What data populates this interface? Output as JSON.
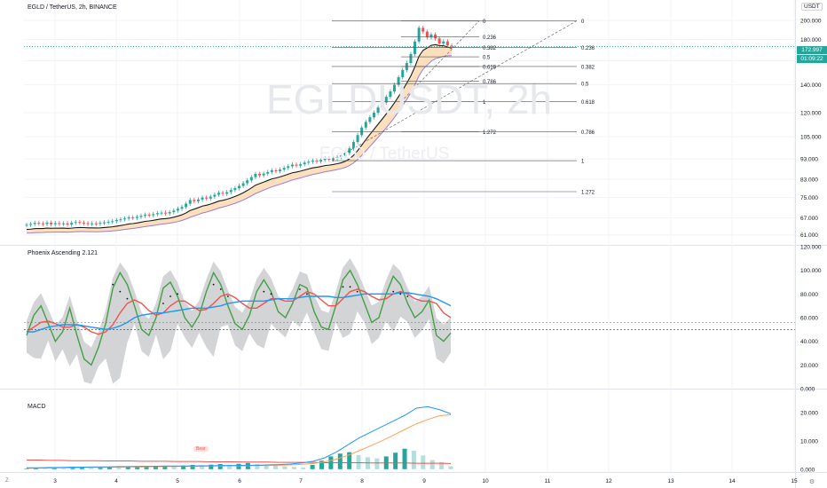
{
  "header": {
    "symbol_title": "EGLD / TetherUS, 2h, BINANCE",
    "currency_label": "USDT",
    "watermark": "EGLDUSDT, 2h",
    "watermark_sub": "EGLD / TetherUS"
  },
  "price_badges": {
    "last_price": "172.997",
    "countdown": "01:09:22"
  },
  "colors": {
    "up": "#26a69a",
    "down": "#ef5350",
    "blue": "#2196f3",
    "red": "#ef5350",
    "green": "#43a047",
    "orange": "#f7a35c",
    "band_fill": "#fcd9b0",
    "purple": "#9c7bd6",
    "grey": "#c8c9cc"
  },
  "panes": {
    "price": {
      "axis_ticks": [
        "200.000",
        "180.000",
        "160.000",
        "140.000",
        "120.000",
        "105.000",
        "93.000",
        "83.000",
        "75.000",
        "67.000",
        "61.000"
      ],
      "fib_left": [
        {
          "label": "0",
          "value": 199.5
        },
        {
          "label": "0.236",
          "value": 182.5
        },
        {
          "label": "0.382",
          "value": 172.0
        },
        {
          "label": "0.5",
          "value": 163.5
        },
        {
          "label": "0.618",
          "value": 155.0
        },
        {
          "label": "0.786",
          "value": 143.0
        },
        {
          "label": "1",
          "value": 127.5
        },
        {
          "label": "1.272",
          "value": 108.0
        }
      ],
      "fib_right": [
        {
          "label": "0",
          "value": 199.5
        },
        {
          "label": "0.236",
          "value": 172.0
        },
        {
          "label": "0.382",
          "value": 155.0
        },
        {
          "label": "0.5",
          "value": 141.0
        },
        {
          "label": "0.618",
          "value": 127.5
        },
        {
          "label": "0.786",
          "value": 108.0
        },
        {
          "label": "1",
          "value": 92.0
        },
        {
          "label": "1.272",
          "value": 77.5
        }
      ]
    },
    "oscillator": {
      "title": "Phoenix Ascending 2.121",
      "axis_ticks": [
        "120.000",
        "100.000",
        "80.000",
        "60.000",
        "40.000",
        "20.000",
        "0.000"
      ]
    },
    "macd": {
      "title": "MACD",
      "axis_ticks": [
        "20.000",
        "10.000",
        "0.000"
      ],
      "signal_label": "Bear"
    }
  },
  "time_axis": [
    "3",
    "4",
    "5",
    "6",
    "7",
    "8",
    "9",
    "10",
    "11",
    "12",
    "13",
    "14",
    "15"
  ],
  "icons": [
    "go-to-date-icon",
    "scale-settings-icon"
  ],
  "chart_data": [
    {
      "type": "line",
      "title": "EGLD / TetherUS, 2h, BINANCE",
      "log_scale": true,
      "ylim": [
        58,
        205
      ],
      "x_label_ticks": [
        "3",
        "4",
        "5",
        "6",
        "7",
        "8",
        "9",
        "10",
        "11",
        "12",
        "13",
        "14",
        "15"
      ],
      "grid": true,
      "series": [
        {
          "values": [
            64.5,
            64.8,
            65.2,
            65.0,
            64.8,
            65.3,
            64.7,
            65.1,
            64.9,
            65.0,
            64.6,
            65.2,
            65.5,
            65.3,
            65.1,
            64.8,
            65.0,
            64.9,
            65.2,
            65.4,
            65.6,
            65.8,
            66.2,
            66.5,
            66.8,
            67.2,
            67.0,
            67.4,
            67.8,
            68.2,
            68.0,
            68.4,
            68.8,
            69.0,
            68.7,
            69.2,
            69.8,
            70.5,
            71.2,
            72.5,
            74.0,
            73.5,
            74.2,
            75.0,
            74.6,
            75.4,
            76.2,
            77.0,
            76.6,
            77.3,
            78.2,
            79.0,
            80.0,
            81.2,
            82.5,
            84.0,
            85.5,
            84.8,
            85.6,
            86.4,
            87.2,
            86.8,
            87.6,
            88.4,
            89.2,
            90.0,
            89.5,
            90.2,
            91.0,
            91.5,
            92.0,
            91.6,
            92.4,
            93.0,
            92.6,
            93.2,
            93.8,
            94.5,
            96.0,
            98.5,
            102.0,
            106.0,
            110.5,
            114.0,
            117.0,
            120.0,
            123.5,
            127.0,
            131.0,
            135.0,
            140.0,
            146.0,
            152.0,
            158.0,
            166.0,
            178.0,
            192.0,
            188.0,
            182.0,
            185.0,
            181.0,
            176.0,
            178.0,
            174.0,
            173.0
          ]
        }
      ]
    },
    {
      "type": "line",
      "title": "Phoenix Ascending 2.121",
      "ylim": [
        0,
        120
      ],
      "x_label_ticks": [
        "3",
        "4",
        "5",
        "6",
        "7",
        "8",
        "9",
        "10",
        "11",
        "12",
        "13",
        "14",
        "15"
      ],
      "series": [
        {
          "values": [
            45,
            62,
            70,
            55,
            40,
            48,
            68,
            45,
            25,
            20,
            35,
            55,
            85,
            98,
            88,
            70,
            50,
            45,
            60,
            85,
            90,
            78,
            60,
            52,
            62,
            82,
            98,
            88,
            70,
            55,
            50,
            62,
            82,
            92,
            82,
            65,
            60,
            72,
            88,
            85,
            65,
            52,
            50,
            70,
            92,
            100,
            88,
            72,
            56,
            60,
            80,
            95,
            88,
            72,
            60,
            65,
            75,
            45,
            40,
            47
          ]
        },
        {
          "values": [
            48,
            52,
            56,
            57,
            55,
            52,
            52,
            54,
            52,
            48,
            46,
            48,
            54,
            64,
            72,
            75,
            72,
            66,
            62,
            64,
            70,
            74,
            74,
            70,
            66,
            67,
            72,
            78,
            80,
            77,
            72,
            68,
            68,
            72,
            76,
            76,
            74,
            74,
            78,
            82,
            80,
            75,
            70,
            70,
            76,
            82,
            84,
            82,
            78,
            75,
            76,
            80,
            82,
            80,
            76,
            74,
            74,
            72,
            64,
            60
          ]
        },
        {
          "values": [
            48,
            48,
            50,
            52,
            53,
            54,
            54,
            54,
            53,
            52,
            51,
            50,
            51,
            53,
            56,
            60,
            62,
            63,
            64,
            64,
            65,
            66,
            67,
            68,
            68,
            68,
            69,
            70,
            72,
            73,
            74,
            74,
            74,
            74,
            75,
            76,
            76,
            76,
            77,
            78,
            78,
            78,
            78,
            77,
            77,
            78,
            79,
            80,
            80,
            80,
            80,
            80,
            81,
            81,
            80,
            79,
            78,
            76,
            73,
            70
          ]
        },
        {
          "values": [
            null,
            null,
            null,
            null,
            null,
            null,
            null,
            null,
            null,
            null,
            null,
            null,
            88,
            82,
            76,
            null,
            null,
            null,
            null,
            72,
            78,
            80,
            null,
            null,
            null,
            null,
            88,
            84,
            78,
            null,
            null,
            null,
            null,
            82,
            80,
            null,
            null,
            null,
            84,
            80,
            null,
            null,
            null,
            null,
            86,
            86,
            82,
            null,
            null,
            null,
            null,
            82,
            80,
            78,
            null,
            null,
            null,
            null,
            null,
            null
          ]
        }
      ]
    },
    {
      "type": "line",
      "title": "MACD",
      "ylim": [
        -1,
        24
      ],
      "x_label_ticks": [
        "3",
        "4",
        "5",
        "6",
        "7",
        "8",
        "9",
        "10",
        "11",
        "12",
        "13",
        "14",
        "15"
      ],
      "series": [
        {
          "values": [
            0.5,
            0.5,
            0.6,
            0.6,
            0.7,
            0.7,
            0.8,
            0.8,
            0.9,
            0.9,
            1.0,
            1.0,
            1.1,
            1.1,
            1.1,
            1.2,
            1.2,
            1.3,
            1.3,
            1.4,
            1.4,
            1.5,
            1.6,
            1.8,
            2.2,
            2.8,
            4.0,
            6.0,
            8.5,
            11.0,
            13.0,
            15.0,
            17.0,
            19.0,
            21.5,
            22.0,
            21.0,
            19.5
          ]
        },
        {
          "values": [
            0.3,
            0.4,
            0.4,
            0.5,
            0.5,
            0.6,
            0.6,
            0.7,
            0.7,
            0.8,
            0.8,
            0.9,
            0.9,
            1.0,
            1.0,
            1.0,
            1.1,
            1.1,
            1.2,
            1.2,
            1.3,
            1.3,
            1.4,
            1.5,
            1.7,
            2.0,
            2.6,
            3.5,
            4.8,
            6.5,
            8.2,
            10.0,
            12.0,
            14.0,
            16.0,
            17.5,
            18.8,
            19.2
          ]
        },
        {
          "values": [
            3.2,
            3.2,
            3.1,
            3.1,
            3.0,
            3.0,
            3.0,
            2.9,
            2.9,
            2.9,
            2.8,
            2.8,
            2.8,
            2.7,
            2.7,
            2.7,
            2.6,
            2.6,
            2.6,
            2.5,
            2.5,
            2.5,
            2.4,
            2.4,
            2.4,
            2.4,
            2.3,
            2.3,
            2.3,
            2.3,
            2.2,
            2.2,
            2.2,
            2.2,
            2.1,
            2.1,
            2.1,
            2.0
          ]
        },
        {
          "values": [
            0.2,
            0.3,
            0.2,
            0.4,
            0.3,
            0.5,
            0.6,
            0.4,
            0.5,
            0.7,
            0.6,
            0.8,
            0.9,
            1.0,
            1.1,
            1.2,
            1.0,
            1.3,
            1.5,
            1.4,
            1.6,
            1.8,
            1.6,
            1.9,
            2.2,
            1.8,
            1.5,
            1.2,
            1.0,
            0.8,
            0.6,
            1.5,
            3.0,
            4.5,
            5.5,
            6.0,
            5.0,
            4.2,
            3.8,
            4.5,
            5.8,
            7.2,
            6.5,
            4.8,
            3.2,
            2.5,
            1.0
          ]
        }
      ]
    }
  ]
}
